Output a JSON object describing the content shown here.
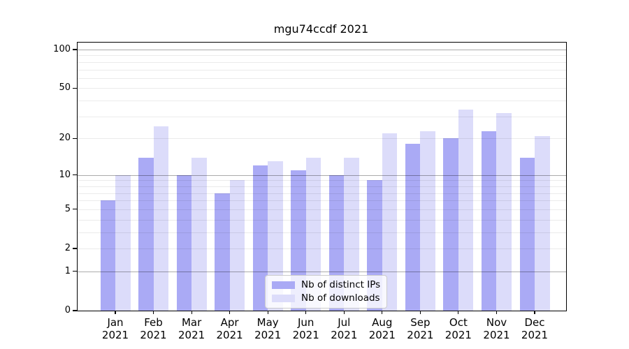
{
  "title": "mgu74ccdf 2021",
  "chart_data": {
    "type": "bar",
    "title": "mgu74ccdf 2021",
    "yscale": "log1p",
    "ylim": [
      0,
      113
    ],
    "y_ticks": [
      0,
      1,
      2,
      5,
      10,
      20,
      50,
      100
    ],
    "grid": "horizontal",
    "grid_major_lines": [
      1,
      10,
      100
    ],
    "grid_minor_lines": [
      2,
      3,
      4,
      5,
      6,
      7,
      8,
      9,
      20,
      30,
      40,
      50,
      60,
      70,
      80,
      90
    ],
    "legend_position": "inside-bottom-center",
    "categories": [
      "Jan 2021",
      "Feb 2021",
      "Mar 2021",
      "Apr 2021",
      "May 2021",
      "Jun 2021",
      "Jul 2021",
      "Aug 2021",
      "Sep 2021",
      "Oct 2021",
      "Nov 2021",
      "Dec 2021"
    ],
    "x_tick_lines": [
      [
        "Jan",
        "2021"
      ],
      [
        "Feb",
        "2021"
      ],
      [
        "Mar",
        "2021"
      ],
      [
        "Apr",
        "2021"
      ],
      [
        "May",
        "2021"
      ],
      [
        "Jun",
        "2021"
      ],
      [
        "Jul",
        "2021"
      ],
      [
        "Aug",
        "2021"
      ],
      [
        "Sep",
        "2021"
      ],
      [
        "Oct",
        "2021"
      ],
      [
        "Nov",
        "2021"
      ],
      [
        "Dec",
        "2021"
      ]
    ],
    "series": [
      {
        "name": "Nb of distinct IPs",
        "color": "#aaaaf5",
        "values": [
          6,
          14,
          10,
          7,
          12,
          11,
          10,
          9,
          18,
          20,
          23,
          14
        ]
      },
      {
        "name": "Nb of downloads",
        "color": "#dcdcfa",
        "values": [
          10,
          25,
          14,
          9,
          13,
          14,
          14,
          22,
          23,
          34,
          32,
          21
        ]
      }
    ]
  },
  "colors": {
    "background": "#ffffff",
    "axis": "#000000",
    "grid_major": "#b0b0b0",
    "grid_minor": "#e9e9e9",
    "bar_distinct_ips": "#aaaaf5",
    "bar_downloads": "#dcdcfa",
    "legend_border": "#cccccc"
  }
}
